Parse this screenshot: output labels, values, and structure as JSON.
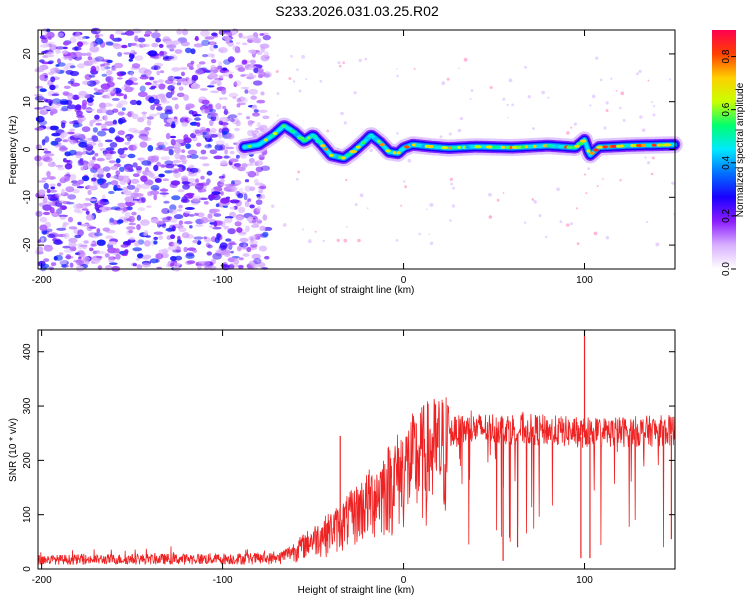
{
  "title": "S233.2026.031.03.25.R02",
  "chart_data": [
    {
      "type": "heatmap",
      "name": "spectrogram",
      "xlabel": "Height of straight line (km)",
      "ylabel": "Frequency (Hz)",
      "xlim": [
        -202,
        150
      ],
      "ylim": [
        -25,
        25
      ],
      "xticks": [
        -200,
        -100,
        0,
        100
      ],
      "yticks": [
        -20,
        -10,
        0,
        10,
        20
      ],
      "colorbar": {
        "label": "Normalized spectral amplitude",
        "range": [
          0.0,
          0.9
        ],
        "ticks": [
          0.0,
          0.2,
          0.4,
          0.6,
          0.8
        ],
        "colormap": [
          "#ffffff",
          "#d8b0ff",
          "#8c1cff",
          "#1a00ff",
          "#0070ff",
          "#00e8ff",
          "#00ff70",
          "#c8ff00",
          "#ffd000",
          "#ff4000",
          "#ff0050"
        ]
      },
      "noise_region": {
        "x": [
          -202,
          -75
        ],
        "y": [
          -25,
          25
        ]
      },
      "ridge": {
        "x_start": -88,
        "x_end": 150,
        "freq": [
          [
            -88,
            0.5
          ],
          [
            -80,
            1.0
          ],
          [
            -72,
            3.0
          ],
          [
            -66,
            5.0
          ],
          [
            -60,
            3.5
          ],
          [
            -55,
            1.8
          ],
          [
            -50,
            3.0
          ],
          [
            -45,
            1.0
          ],
          [
            -40,
            -1.2
          ],
          [
            -33,
            -1.8
          ],
          [
            -28,
            -0.5
          ],
          [
            -22,
            1.5
          ],
          [
            -18,
            3.0
          ],
          [
            -13,
            1.5
          ],
          [
            -8,
            -0.5
          ],
          [
            -3,
            -0.8
          ],
          [
            0,
            0.3
          ],
          [
            5,
            1.0
          ],
          [
            15,
            0.6
          ],
          [
            25,
            0.3
          ],
          [
            40,
            0.6
          ],
          [
            60,
            0.4
          ],
          [
            80,
            0.8
          ],
          [
            95,
            0.4
          ],
          [
            100,
            2.0
          ],
          [
            103,
            -1.2
          ],
          [
            108,
            0.5
          ],
          [
            125,
            0.8
          ],
          [
            150,
            1.0
          ]
        ]
      }
    },
    {
      "type": "line",
      "name": "snr",
      "xlabel": "Height of straight line (km)",
      "ylabel": "SNR (10 * v/v)",
      "xlim": [
        -202,
        150
      ],
      "ylim": [
        0,
        440
      ],
      "xticks": [
        -200,
        -100,
        0,
        100
      ],
      "yticks": [
        0,
        100,
        200,
        300,
        400
      ],
      "color": "#ee2222",
      "envelope": [
        [
          -202,
          20
        ],
        [
          -70,
          25
        ],
        [
          -60,
          45
        ],
        [
          -50,
          70
        ],
        [
          -35,
          105
        ],
        [
          -25,
          140
        ],
        [
          -15,
          175
        ],
        [
          -5,
          215
        ],
        [
          5,
          250
        ],
        [
          15,
          275
        ],
        [
          25,
          285
        ],
        [
          35,
          292
        ],
        [
          50,
          295
        ],
        [
          80,
          290
        ],
        [
          100,
          285
        ],
        [
          150,
          290
        ]
      ],
      "spikes": [
        [
          -35,
          245
        ],
        [
          100,
          440
        ],
        [
          55,
          15
        ],
        [
          63,
          40
        ],
        [
          98,
          20
        ],
        [
          103,
          20
        ],
        [
          148,
          55
        ]
      ]
    }
  ]
}
